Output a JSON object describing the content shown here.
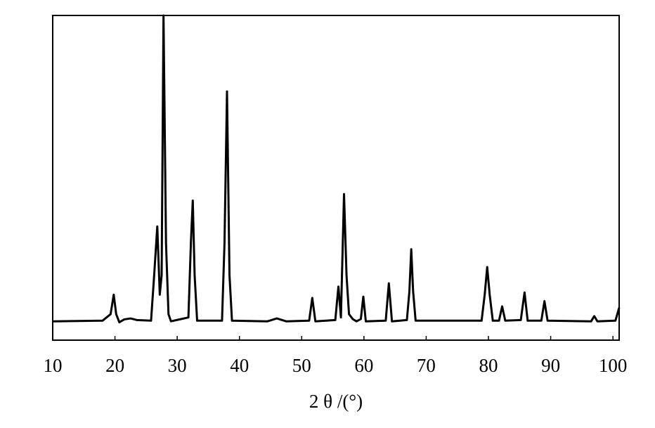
{
  "chart_data": {
    "type": "line",
    "xlabel": "2 θ /(°)",
    "color": "#000000",
    "x": [
      10,
      18,
      19.3,
      19.8,
      20.2,
      20.7,
      21.5,
      22.5,
      23.5,
      25.8,
      26.3,
      26.8,
      27.2,
      27.5,
      27.8,
      28.2,
      28.6,
      29,
      31.8,
      32.2,
      32.5,
      32.8,
      33.2,
      37.2,
      37.6,
      38,
      38.4,
      38.8,
      44.5,
      46,
      47.5,
      51.2,
      51.7,
      52.2,
      55.4,
      55.9,
      56.3,
      56.8,
      57.2,
      57.6,
      58.2,
      58.8,
      59.5,
      59.9,
      60.3,
      63.5,
      64,
      64.5,
      66.9,
      67.3,
      67.6,
      67.9,
      68.3,
      78.9,
      79.4,
      79.8,
      80.2,
      80.7,
      81.7,
      82.2,
      82.7,
      85.2,
      85.8,
      86.3,
      88.5,
      89,
      89.5,
      96.5,
      97,
      97.5,
      100.4,
      101
    ],
    "values": [
      5.8,
      6,
      8,
      14,
      8,
      5.5,
      6.4,
      6.7,
      6.2,
      6,
      20,
      35,
      14,
      20,
      100,
      30,
      8,
      5.8,
      7,
      30,
      43,
      20,
      6,
      6,
      30,
      76.6,
      20,
      6,
      5.8,
      6.7,
      5.8,
      6,
      13,
      5.8,
      6.2,
      16.5,
      7,
      45,
      20,
      8,
      6.5,
      5.8,
      6.5,
      13.4,
      5.8,
      6,
      17.5,
      5.8,
      6.2,
      15,
      28,
      15,
      6,
      6,
      14,
      22.5,
      14,
      6,
      6,
      10.4,
      6,
      6.2,
      14.7,
      6,
      6,
      12,
      6,
      5.8,
      7.4,
      5.8,
      6,
      10
    ],
    "xlim": [
      10,
      101
    ],
    "ylim": [
      0,
      100
    ],
    "xticks": [
      10,
      20,
      30,
      40,
      50,
      60,
      70,
      80,
      90,
      100
    ]
  }
}
